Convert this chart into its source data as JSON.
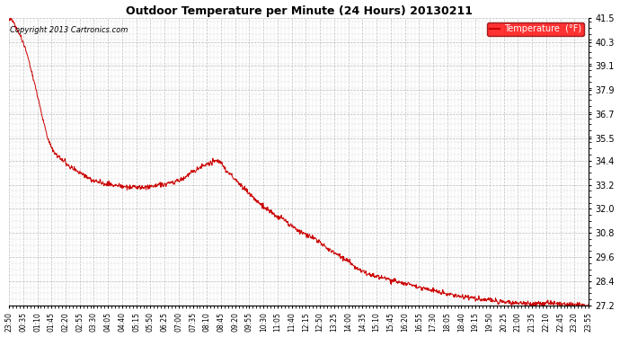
{
  "title": "Outdoor Temperature per Minute (24 Hours) 20130211",
  "copyright_text": "Copyright 2013 Cartronics.com",
  "legend_label": "Temperature  (°F)",
  "line_color": "#cc0000",
  "background_color": "#ffffff",
  "grid_color": "#aaaaaa",
  "ylim": [
    27.2,
    41.5
  ],
  "yticks": [
    27.2,
    28.4,
    29.6,
    30.8,
    32.0,
    33.2,
    34.4,
    35.5,
    36.7,
    37.9,
    39.1,
    40.3,
    41.5
  ],
  "xtick_labels": [
    "23:50",
    "00:35",
    "01:10",
    "01:45",
    "02:20",
    "02:55",
    "03:30",
    "04:05",
    "04:40",
    "05:15",
    "05:50",
    "06:25",
    "07:00",
    "07:35",
    "08:10",
    "08:45",
    "09:20",
    "09:55",
    "10:30",
    "11:05",
    "11:40",
    "12:15",
    "12:50",
    "13:25",
    "14:00",
    "14:35",
    "15:10",
    "15:45",
    "16:20",
    "16:55",
    "17:30",
    "18:05",
    "18:40",
    "19:15",
    "19:50",
    "20:25",
    "21:00",
    "21:35",
    "22:10",
    "22:45",
    "23:20",
    "23:55"
  ],
  "data_segments": [
    [
      0,
      41.4
    ],
    [
      5,
      41.5
    ],
    [
      10,
      41.3
    ],
    [
      15,
      41.1
    ],
    [
      20,
      40.9
    ],
    [
      25,
      40.7
    ],
    [
      30,
      40.5
    ],
    [
      40,
      40.0
    ],
    [
      50,
      39.3
    ],
    [
      60,
      38.5
    ],
    [
      70,
      37.7
    ],
    [
      80,
      36.8
    ],
    [
      90,
      36.0
    ],
    [
      100,
      35.3
    ],
    [
      110,
      34.9
    ],
    [
      120,
      34.6
    ],
    [
      130,
      34.5
    ],
    [
      140,
      34.3
    ],
    [
      150,
      34.1
    ],
    [
      160,
      34.0
    ],
    [
      175,
      33.8
    ],
    [
      190,
      33.6
    ],
    [
      210,
      33.4
    ],
    [
      230,
      33.3
    ],
    [
      250,
      33.2
    ],
    [
      270,
      33.15
    ],
    [
      290,
      33.1
    ],
    [
      320,
      33.05
    ],
    [
      350,
      33.1
    ],
    [
      380,
      33.2
    ],
    [
      400,
      33.3
    ],
    [
      420,
      33.4
    ],
    [
      440,
      33.6
    ],
    [
      460,
      33.9
    ],
    [
      480,
      34.1
    ],
    [
      500,
      34.3
    ],
    [
      510,
      34.4
    ],
    [
      520,
      34.35
    ],
    [
      530,
      34.2
    ],
    [
      540,
      33.9
    ],
    [
      560,
      33.5
    ],
    [
      580,
      33.1
    ],
    [
      600,
      32.7
    ],
    [
      620,
      32.3
    ],
    [
      640,
      32.0
    ],
    [
      660,
      31.7
    ],
    [
      680,
      31.5
    ],
    [
      700,
      31.2
    ],
    [
      720,
      30.9
    ],
    [
      740,
      30.7
    ],
    [
      760,
      30.5
    ],
    [
      780,
      30.2
    ],
    [
      800,
      29.9
    ],
    [
      820,
      29.7
    ],
    [
      840,
      29.4
    ],
    [
      860,
      29.1
    ],
    [
      880,
      28.9
    ],
    [
      900,
      28.7
    ],
    [
      920,
      28.6
    ],
    [
      940,
      28.5
    ],
    [
      960,
      28.4
    ],
    [
      980,
      28.3
    ],
    [
      1000,
      28.2
    ],
    [
      1020,
      28.1
    ],
    [
      1040,
      28.0
    ],
    [
      1060,
      27.9
    ],
    [
      1080,
      27.8
    ],
    [
      1100,
      27.7
    ],
    [
      1120,
      27.65
    ],
    [
      1140,
      27.6
    ],
    [
      1160,
      27.55
    ],
    [
      1180,
      27.5
    ],
    [
      1200,
      27.45
    ],
    [
      1220,
      27.4
    ],
    [
      1240,
      27.35
    ],
    [
      1260,
      27.3
    ],
    [
      1280,
      27.3
    ],
    [
      1300,
      27.3
    ],
    [
      1320,
      27.3
    ],
    [
      1340,
      27.3
    ],
    [
      1360,
      27.3
    ],
    [
      1380,
      27.25
    ],
    [
      1400,
      27.25
    ],
    [
      1420,
      27.2
    ],
    [
      1439,
      27.2
    ]
  ],
  "total_minutes": 1440,
  "figsize": [
    6.9,
    3.75
  ],
  "dpi": 100
}
